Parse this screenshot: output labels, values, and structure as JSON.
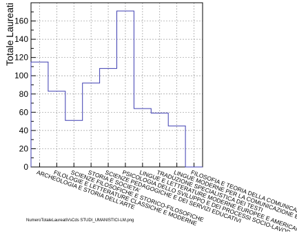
{
  "chart_data": {
    "type": "bar",
    "style": "histogram-step",
    "ylabel": "Totale Laureati",
    "xlabel": "",
    "title": "",
    "ylim": [
      0,
      180
    ],
    "yticks": [
      0,
      20,
      40,
      60,
      80,
      100,
      120,
      140,
      160
    ],
    "grid": true,
    "line_color": "#3b3bb0",
    "categories": [
      "ARCHEOLOGIA E STORIA DELL'ARTE",
      "FILOLOGIE E LETTERATURE CLASSICHE E MODERNE",
      "SCIENZE FILOSOFICHE E STORICO-FILOSOFICHE",
      "STORIA E SOCIETA'",
      "SCIENZE PEDAGOGICHE E DEI SERVIZI EDUCATIVI",
      "PSICOLOGIA DELLO SVILUPPO E DEI PROCESSI SOCIO-LAVORATIVI",
      "LINGUE E LETTERATURE MODERNE EUROPEE E AMERICANE",
      "TRADUZIONE SPECIALISTICA DEI TESTI",
      "LINGUE MODERNE PER LA COMUNICAZIONE E ...",
      "FILOSOFIA E TEORIA DELLA COMUNICAZIONE"
    ],
    "values": [
      115,
      83,
      51,
      92,
      108,
      171,
      64,
      59,
      45,
      0
    ]
  },
  "footer": {
    "filename": "NumeroTotaleLaureatiVsCds STUDI_UMANISTICI-LM.png"
  }
}
